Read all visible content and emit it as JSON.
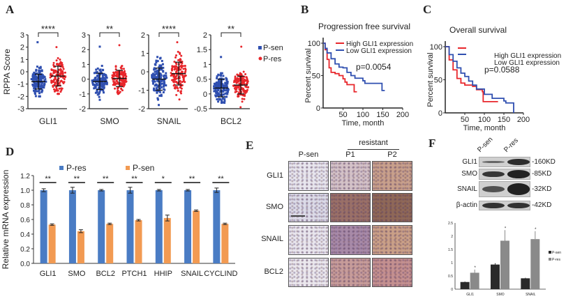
{
  "panels": {
    "A": "A",
    "B": "B",
    "C": "C",
    "D": "D",
    "E": "E",
    "F": "F"
  },
  "colors": {
    "blue": "#2f4fb0",
    "red": "#e8262b",
    "d_blue": "#4a7cc4",
    "d_orange": "#f29a52",
    "f_dark": "#2a2a2a",
    "f_gray": "#8a8a8a"
  },
  "chart_data": [
    {
      "id": "A",
      "type": "scatter",
      "ylabel": "RPPA Score",
      "legend": {
        "position": "right",
        "entries": [
          "P-sen",
          "P-res"
        ]
      },
      "subplots": [
        {
          "category": "GLI1",
          "significance": "****",
          "ylim": [
            -3,
            3
          ],
          "yticks": [
            "3",
            "2",
            "1",
            "0",
            "-1",
            "-2",
            "-3"
          ],
          "groups": [
            {
              "name": "P-sen",
              "mean": -0.8,
              "sd": 0.6,
              "min": -2.0,
              "max": 2.4
            },
            {
              "name": "P-res",
              "mean": -0.35,
              "sd": 0.8,
              "min": -1.8,
              "max": 2.0
            }
          ]
        },
        {
          "category": "SMO",
          "significance": "**",
          "ylim": [
            -2,
            3
          ],
          "yticks": [
            "3",
            "2",
            "1",
            "0",
            "-1",
            "-2"
          ],
          "groups": [
            {
              "name": "P-sen",
              "mean": -0.15,
              "sd": 0.55,
              "min": -1.4,
              "max": 2.2
            },
            {
              "name": "P-res",
              "mean": 0.05,
              "sd": 0.55,
              "min": -1.0,
              "max": 2.3
            }
          ]
        },
        {
          "category": "SNAIL",
          "significance": "****",
          "ylim": [
            -2,
            2
          ],
          "yticks": [
            "2",
            "1",
            "0",
            "-1",
            "-2"
          ],
          "groups": [
            {
              "name": "P-sen",
              "mean": -0.4,
              "sd": 0.6,
              "min": -1.8,
              "max": 0.8
            },
            {
              "name": "P-res",
              "mean": -0.1,
              "sd": 0.62,
              "min": -1.5,
              "max": 1.6
            }
          ]
        },
        {
          "category": "BCL2",
          "significance": "**",
          "ylim": [
            -0.5,
            2
          ],
          "yticks": [
            "2",
            "1.5",
            "1",
            "0.5",
            "0",
            "-0.5"
          ],
          "groups": [
            {
              "name": "P-sen",
              "mean": 0.2,
              "sd": 0.3,
              "min": -0.3,
              "max": 1.25
            },
            {
              "name": "P-res",
              "mean": 0.3,
              "sd": 0.3,
              "min": -0.45,
              "max": 1.6
            }
          ]
        }
      ]
    },
    {
      "id": "B",
      "type": "line",
      "title": "Progression free survival",
      "xlabel": "Time, month",
      "ylabel": "Percent survival",
      "xlim": [
        0,
        200
      ],
      "ylim": [
        0,
        100
      ],
      "xticks": [
        "50",
        "100",
        "150",
        "200"
      ],
      "yticks": [
        "0",
        "50",
        "100"
      ],
      "annotation": "p=0.0054",
      "series": [
        {
          "name": "High GLI1 expression",
          "color": "#e8262b",
          "points": [
            [
              0,
              100
            ],
            [
              5,
              90
            ],
            [
              10,
              75
            ],
            [
              15,
              62
            ],
            [
              20,
              55
            ],
            [
              30,
              53
            ],
            [
              40,
              50
            ],
            [
              50,
              45
            ],
            [
              55,
              40
            ],
            [
              60,
              36
            ],
            [
              75,
              36
            ],
            [
              78,
              25
            ],
            [
              85,
              25
            ]
          ]
        },
        {
          "name": "Low GLI1 expression",
          "color": "#2f4fb0",
          "points": [
            [
              0,
              100
            ],
            [
              5,
              92
            ],
            [
              10,
              85
            ],
            [
              20,
              76
            ],
            [
              30,
              68
            ],
            [
              40,
              63
            ],
            [
              50,
              62
            ],
            [
              60,
              55
            ],
            [
              70,
              50
            ],
            [
              80,
              46
            ],
            [
              100,
              42
            ],
            [
              105,
              38
            ],
            [
              145,
              38
            ],
            [
              148,
              27
            ],
            [
              155,
              27
            ]
          ]
        }
      ]
    },
    {
      "id": "C",
      "type": "line",
      "title": "Overall survival",
      "xlabel": "Time, month",
      "ylabel": "Percent survival",
      "xlim": [
        0,
        200
      ],
      "ylim": [
        0,
        100
      ],
      "xticks": [
        "50",
        "100",
        "150",
        "200"
      ],
      "yticks": [
        "0",
        "50",
        "100"
      ],
      "annotation": "p=0.0588",
      "series": [
        {
          "name": "High GLI1 expression",
          "color": "#e8262b",
          "points": [
            [
              0,
              100
            ],
            [
              10,
              80
            ],
            [
              20,
              65
            ],
            [
              30,
              52
            ],
            [
              40,
              45
            ],
            [
              50,
              42
            ],
            [
              70,
              40
            ],
            [
              80,
              35
            ],
            [
              95,
              32
            ],
            [
              97,
              17
            ],
            [
              135,
              17
            ]
          ]
        },
        {
          "name": "Low GLI1 expression",
          "color": "#2f4fb0",
          "points": [
            [
              0,
              100
            ],
            [
              10,
              88
            ],
            [
              20,
              78
            ],
            [
              30,
              68
            ],
            [
              40,
              60
            ],
            [
              50,
              55
            ],
            [
              60,
              48
            ],
            [
              70,
              42
            ],
            [
              80,
              36
            ],
            [
              100,
              28
            ],
            [
              120,
              22
            ],
            [
              150,
              18
            ],
            [
              155,
              15
            ],
            [
              172,
              15
            ],
            [
              175,
              0
            ]
          ]
        }
      ]
    },
    {
      "id": "D",
      "type": "bar",
      "ylabel": "Relative mRNA expression",
      "ylim": [
        0,
        1.2
      ],
      "yticks": [
        "0.0",
        "0.2",
        "0.4",
        "0.6",
        "0.8",
        "1.0",
        "1.2"
      ],
      "categories": [
        "GLI1",
        "SMO",
        "BCL2",
        "PTCH1",
        "HHIP",
        "SNAIL",
        "CYCLIND"
      ],
      "significance": [
        "**",
        "**",
        "**",
        "**",
        "*",
        "**",
        "**"
      ],
      "legend": {
        "position": "top"
      },
      "series": [
        {
          "name": "P-res",
          "color": "#4a7cc4",
          "values": [
            1.0,
            1.0,
            1.0,
            1.0,
            1.0,
            1.0,
            1.0
          ],
          "errors": [
            0.02,
            0.04,
            0.01,
            0.04,
            0.01,
            0.01,
            0.03
          ]
        },
        {
          "name": "P-sen",
          "color": "#f29a52",
          "values": [
            0.53,
            0.44,
            0.54,
            0.59,
            0.62,
            0.72,
            0.54
          ],
          "errors": [
            0.01,
            0.02,
            0.01,
            0.01,
            0.04,
            0.01,
            0.01
          ]
        }
      ]
    },
    {
      "id": "F",
      "type": "bar",
      "ylim": [
        0,
        2.5
      ],
      "yticks": [
        "0",
        "0.5",
        "1",
        "1.5",
        "2",
        "2.5"
      ],
      "categories": [
        "GLI1",
        "SMO",
        "SNAIL"
      ],
      "legend": {
        "position": "right"
      },
      "series": [
        {
          "name": "P-sen",
          "color": "#2a2a2a",
          "values": [
            0.27,
            0.93,
            0.41
          ],
          "errors": [
            0.02,
            0.05,
            0.02
          ]
        },
        {
          "name": "P-res",
          "color": "#8a8a8a",
          "values": [
            0.62,
            1.83,
            1.89
          ],
          "errors": [
            0.12,
            0.4,
            0.3
          ]
        }
      ],
      "significance": [
        "*",
        "*",
        "*"
      ]
    }
  ],
  "ihc": {
    "columns": [
      "P-sen",
      "P1",
      "P2"
    ],
    "group_label": "resistant",
    "rows": [
      "GLI1",
      "SMO",
      "SNAIL",
      "BCL2"
    ]
  },
  "western": {
    "lanes": [
      "P-sen",
      "P-res"
    ],
    "rows": [
      {
        "label": "GLI1",
        "size": "160KD",
        "intensity": [
          0.35,
          0.9
        ]
      },
      {
        "label": "SMO",
        "size": "85KD",
        "intensity": [
          0.8,
          1.0
        ]
      },
      {
        "label": "SNAIL",
        "size": "32KD",
        "intensity": [
          0.55,
          1.0
        ]
      },
      {
        "label": "β-actin",
        "size": "42KD",
        "intensity": [
          0.85,
          0.85
        ]
      }
    ]
  }
}
